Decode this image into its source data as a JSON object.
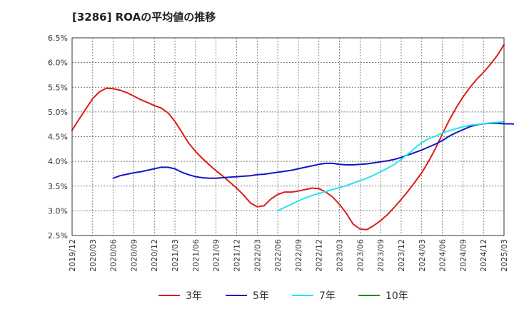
{
  "header": {
    "title": "[3286]  ROAの平均値の推移"
  },
  "chart_data": {
    "type": "line",
    "title": "[3286]  ROAの平均値の推移",
    "xlabel": "",
    "ylabel": "",
    "x_ticks": [
      "2019/12",
      "2020/03",
      "2020/06",
      "2020/09",
      "2020/12",
      "2021/03",
      "2021/06",
      "2021/09",
      "2021/12",
      "2022/03",
      "2022/06",
      "2022/09",
      "2022/12",
      "2023/03",
      "2023/06",
      "2023/09",
      "2023/12",
      "2024/03",
      "2024/06",
      "2024/09",
      "2024/12",
      "2025/03"
    ],
    "y_ticks": [
      "2.5%",
      "3.0%",
      "3.5%",
      "4.0%",
      "4.5%",
      "5.0%",
      "5.5%",
      "6.0%",
      "6.5%"
    ],
    "ylim": [
      2.5,
      6.5
    ],
    "grid": true,
    "legend_position": "bottom",
    "series": [
      {
        "name": "3年",
        "color": "#dd1c1c",
        "start_month_index": 0,
        "values": [
          4.63,
          4.85,
          5.06,
          5.27,
          5.41,
          5.48,
          5.47,
          5.44,
          5.39,
          5.32,
          5.25,
          5.19,
          5.13,
          5.08,
          4.98,
          4.81,
          4.59,
          4.37,
          4.2,
          4.06,
          3.93,
          3.81,
          3.7,
          3.58,
          3.46,
          3.32,
          3.16,
          3.08,
          3.1,
          3.24,
          3.33,
          3.38,
          3.38,
          3.4,
          3.43,
          3.46,
          3.45,
          3.38,
          3.28,
          3.13,
          2.95,
          2.73,
          2.63,
          2.62,
          2.7,
          2.8,
          2.92,
          3.07,
          3.23,
          3.4,
          3.58,
          3.77,
          4.0,
          4.26,
          4.55,
          4.83,
          5.08,
          5.3,
          5.49,
          5.66,
          5.8,
          5.96,
          6.14,
          6.36
        ]
      },
      {
        "name": "5年",
        "color": "#1414c8",
        "start_month_index": 6,
        "values": [
          3.66,
          3.71,
          3.74,
          3.77,
          3.79,
          3.82,
          3.85,
          3.88,
          3.88,
          3.85,
          3.78,
          3.73,
          3.69,
          3.67,
          3.66,
          3.66,
          3.67,
          3.68,
          3.69,
          3.7,
          3.71,
          3.73,
          3.74,
          3.76,
          3.78,
          3.8,
          3.82,
          3.85,
          3.88,
          3.91,
          3.94,
          3.96,
          3.96,
          3.94,
          3.93,
          3.93,
          3.94,
          3.95,
          3.97,
          3.99,
          4.01,
          4.04,
          4.08,
          4.13,
          4.18,
          4.23,
          4.29,
          4.35,
          4.42,
          4.51,
          4.58,
          4.64,
          4.7,
          4.74,
          4.76,
          4.77,
          4.77,
          4.76,
          4.76,
          4.75,
          4.74
        ]
      },
      {
        "name": "7年",
        "color": "#22e6ee",
        "start_month_index": 30,
        "values": [
          3.0,
          3.07,
          3.13,
          3.2,
          3.26,
          3.31,
          3.35,
          3.39,
          3.43,
          3.47,
          3.51,
          3.56,
          3.61,
          3.66,
          3.72,
          3.79,
          3.86,
          3.94,
          4.04,
          4.15,
          4.27,
          4.38,
          4.46,
          4.51,
          4.57,
          4.62,
          4.66,
          4.7,
          4.73,
          4.75,
          4.76,
          4.78,
          4.79,
          4.8
        ]
      },
      {
        "name": "10年",
        "color": "#228b22",
        "start_month_index": 0,
        "values": []
      }
    ]
  }
}
